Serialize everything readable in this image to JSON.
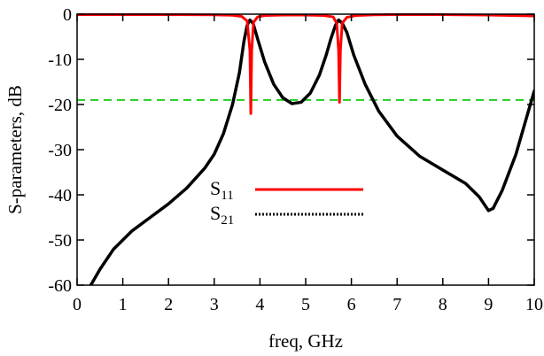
{
  "chart_data": {
    "type": "line",
    "xlabel": "freq, GHz",
    "ylabel": "S-parameters, dB",
    "xlim": [
      0,
      10
    ],
    "ylim": [
      -60,
      0
    ],
    "x_ticks": [
      "0",
      "1",
      "2",
      "3",
      "4",
      "5",
      "6",
      "7",
      "8",
      "9",
      "10"
    ],
    "y_ticks": [
      "0",
      "-10",
      "-20",
      "-30",
      "-40",
      "-50",
      "-60"
    ],
    "grid": false,
    "legend": {
      "placement": "center-left",
      "entries": [
        {
          "main": "S",
          "sub": "11",
          "color": "#ff0000",
          "style": "solid"
        },
        {
          "main": "S",
          "sub": "21",
          "color": "#000000",
          "style": "dotted"
        }
      ]
    },
    "reference_line": {
      "y": -19,
      "color": "#22cc22",
      "style": "dashed"
    },
    "series": [
      {
        "color": "#ff0000",
        "points": [
          [
            0,
            -0.1
          ],
          [
            1,
            -0.1
          ],
          [
            2,
            -0.1
          ],
          [
            3,
            -0.15
          ],
          [
            3.4,
            -0.25
          ],
          [
            3.6,
            -0.5
          ],
          [
            3.72,
            -1.5
          ],
          [
            3.78,
            -8
          ],
          [
            3.8,
            -22
          ],
          [
            3.82,
            -8
          ],
          [
            3.86,
            -1.8
          ],
          [
            3.95,
            -0.6
          ],
          [
            4.1,
            -0.3
          ],
          [
            4.5,
            -0.2
          ],
          [
            5.0,
            -0.2
          ],
          [
            5.4,
            -0.3
          ],
          [
            5.6,
            -0.6
          ],
          [
            5.68,
            -2
          ],
          [
            5.72,
            -8
          ],
          [
            5.74,
            -19.5
          ],
          [
            5.76,
            -8
          ],
          [
            5.8,
            -2
          ],
          [
            5.9,
            -0.7
          ],
          [
            6.1,
            -0.3
          ],
          [
            6.5,
            -0.15
          ],
          [
            7,
            -0.1
          ],
          [
            8,
            -0.1
          ],
          [
            9,
            -0.2
          ],
          [
            10,
            -0.4
          ]
        ]
      },
      {
        "color": "#000000",
        "points": [
          [
            0.3,
            -60
          ],
          [
            0.5,
            -56.5
          ],
          [
            0.8,
            -52
          ],
          [
            1.2,
            -48
          ],
          [
            1.6,
            -45
          ],
          [
            2.0,
            -42
          ],
          [
            2.4,
            -38.5
          ],
          [
            2.8,
            -34
          ],
          [
            3.0,
            -31
          ],
          [
            3.2,
            -26.5
          ],
          [
            3.4,
            -20
          ],
          [
            3.55,
            -13
          ],
          [
            3.65,
            -6
          ],
          [
            3.72,
            -2.5
          ],
          [
            3.78,
            -1.3
          ],
          [
            3.85,
            -2
          ],
          [
            3.95,
            -5.5
          ],
          [
            4.1,
            -10.5
          ],
          [
            4.3,
            -15.5
          ],
          [
            4.5,
            -18.5
          ],
          [
            4.7,
            -19.8
          ],
          [
            4.9,
            -19.5
          ],
          [
            5.1,
            -17.5
          ],
          [
            5.3,
            -13.5
          ],
          [
            5.45,
            -9
          ],
          [
            5.55,
            -5.5
          ],
          [
            5.65,
            -2.5
          ],
          [
            5.72,
            -1.3
          ],
          [
            5.8,
            -2
          ],
          [
            5.9,
            -4
          ],
          [
            6.05,
            -9
          ],
          [
            6.3,
            -15.5
          ],
          [
            6.6,
            -21.5
          ],
          [
            7.0,
            -27
          ],
          [
            7.5,
            -31.5
          ],
          [
            8.0,
            -34.5
          ],
          [
            8.5,
            -37.5
          ],
          [
            8.8,
            -40.5
          ],
          [
            9.0,
            -43.5
          ],
          [
            9.1,
            -43
          ],
          [
            9.3,
            -39
          ],
          [
            9.6,
            -31
          ],
          [
            9.8,
            -24
          ],
          [
            10.0,
            -17
          ]
        ]
      }
    ]
  }
}
